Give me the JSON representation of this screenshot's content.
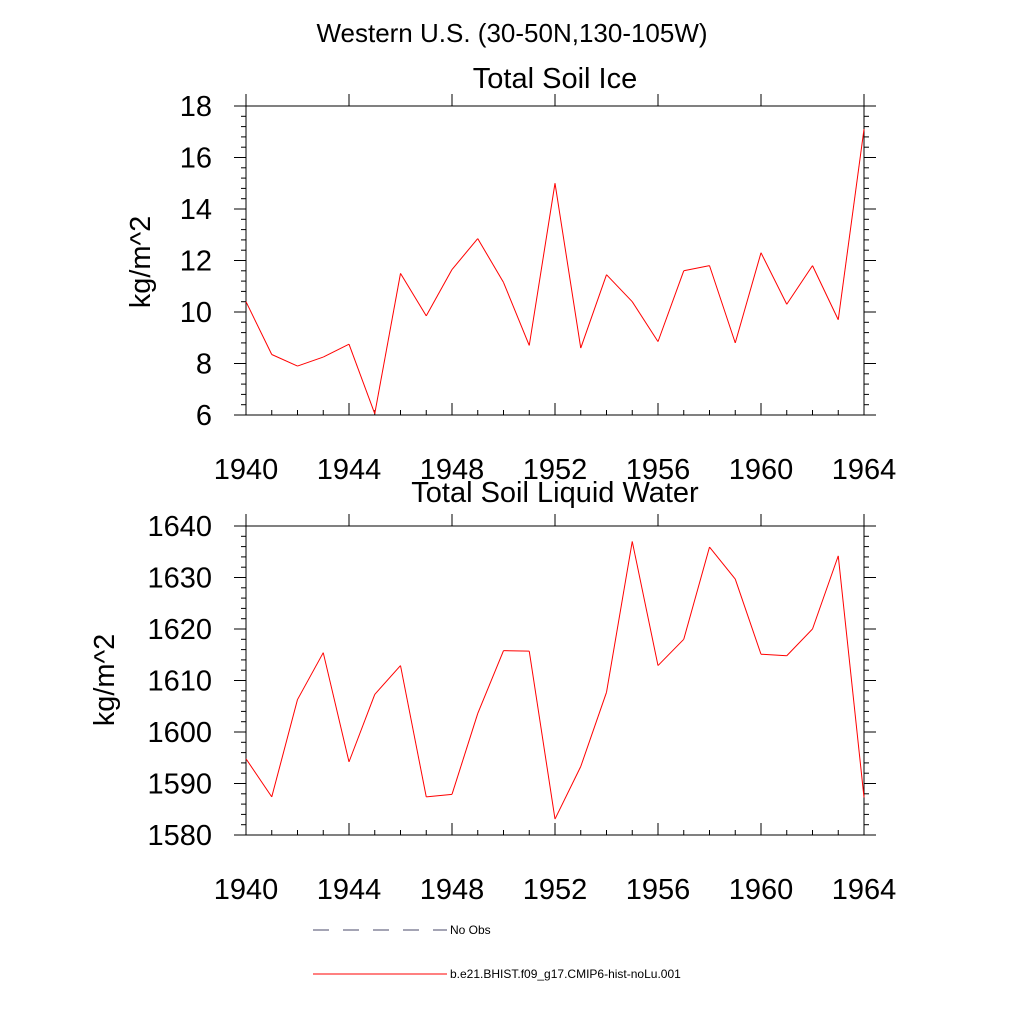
{
  "figure": {
    "main_title": "Western U.S. (30-50N,130-105W)"
  },
  "chart_data": [
    {
      "type": "line",
      "title": "Total Soil Ice",
      "xlabel": "",
      "ylabel": "kg/m^2",
      "xlim": [
        1940,
        1964
      ],
      "ylim": [
        6,
        18
      ],
      "x_ticks": [
        1940,
        1944,
        1948,
        1952,
        1956,
        1960,
        1964
      ],
      "x_tick_labels": [
        "1940",
        "1944",
        "1948",
        "1952",
        "1956",
        "1960",
        "1964"
      ],
      "y_ticks": [
        6,
        8,
        10,
        12,
        14,
        16,
        18
      ],
      "y_tick_labels": [
        "6",
        "8",
        "10",
        "12",
        "14",
        "16",
        "18"
      ],
      "grid": false,
      "series": [
        {
          "name": "b.e21.BHIST.f09_g17.CMIP6-hist-noLu.001",
          "color": "#ff0000",
          "x": [
            1940,
            1941,
            1942,
            1943,
            1944,
            1945,
            1946,
            1947,
            1948,
            1949,
            1950,
            1951,
            1952,
            1953,
            1954,
            1955,
            1956,
            1957,
            1958,
            1959,
            1960,
            1961,
            1962,
            1963,
            1964
          ],
          "y": [
            10.4,
            8.35,
            7.9,
            8.25,
            8.75,
            6.05,
            11.5,
            9.85,
            11.65,
            12.85,
            11.15,
            8.7,
            15.0,
            8.6,
            11.45,
            10.4,
            8.85,
            11.6,
            11.8,
            8.8,
            12.3,
            10.3,
            11.8,
            9.7,
            17.1
          ]
        }
      ]
    },
    {
      "type": "line",
      "title": "Total Soil Liquid Water",
      "xlabel": "",
      "ylabel": "kg/m^2",
      "xlim": [
        1940,
        1964
      ],
      "ylim": [
        1580,
        1640
      ],
      "x_ticks": [
        1940,
        1944,
        1948,
        1952,
        1956,
        1960,
        1964
      ],
      "x_tick_labels": [
        "1940",
        "1944",
        "1948",
        "1952",
        "1956",
        "1960",
        "1964"
      ],
      "y_ticks": [
        1580,
        1590,
        1600,
        1610,
        1620,
        1630,
        1640
      ],
      "y_tick_labels": [
        "1580",
        "1590",
        "1600",
        "1610",
        "1620",
        "1630",
        "1640"
      ],
      "grid": false,
      "series": [
        {
          "name": "b.e21.BHIST.f09_g17.CMIP6-hist-noLu.001",
          "color": "#ff0000",
          "x": [
            1940,
            1941,
            1942,
            1943,
            1944,
            1945,
            1946,
            1947,
            1948,
            1949,
            1950,
            1951,
            1952,
            1953,
            1954,
            1955,
            1956,
            1957,
            1958,
            1959,
            1960,
            1961,
            1962,
            1963,
            1964
          ],
          "y": [
            1594.8,
            1587.4,
            1606.3,
            1615.4,
            1594.2,
            1607.3,
            1612.9,
            1587.4,
            1587.9,
            1603.6,
            1615.8,
            1615.7,
            1583.1,
            1593.3,
            1607.7,
            1637.0,
            1612.9,
            1618.0,
            1635.9,
            1629.7,
            1615.1,
            1614.8,
            1620.0,
            1634.2,
            1587.3
          ]
        }
      ]
    }
  ],
  "legend": {
    "placement": "bottom",
    "items": [
      {
        "label": "No Obs",
        "style": "dashed",
        "color": "#4a4a6a"
      },
      {
        "label": "b.e21.BHIST.f09_g17.CMIP6-hist-noLu.001",
        "style": "solid",
        "color": "#ff0000"
      }
    ]
  }
}
